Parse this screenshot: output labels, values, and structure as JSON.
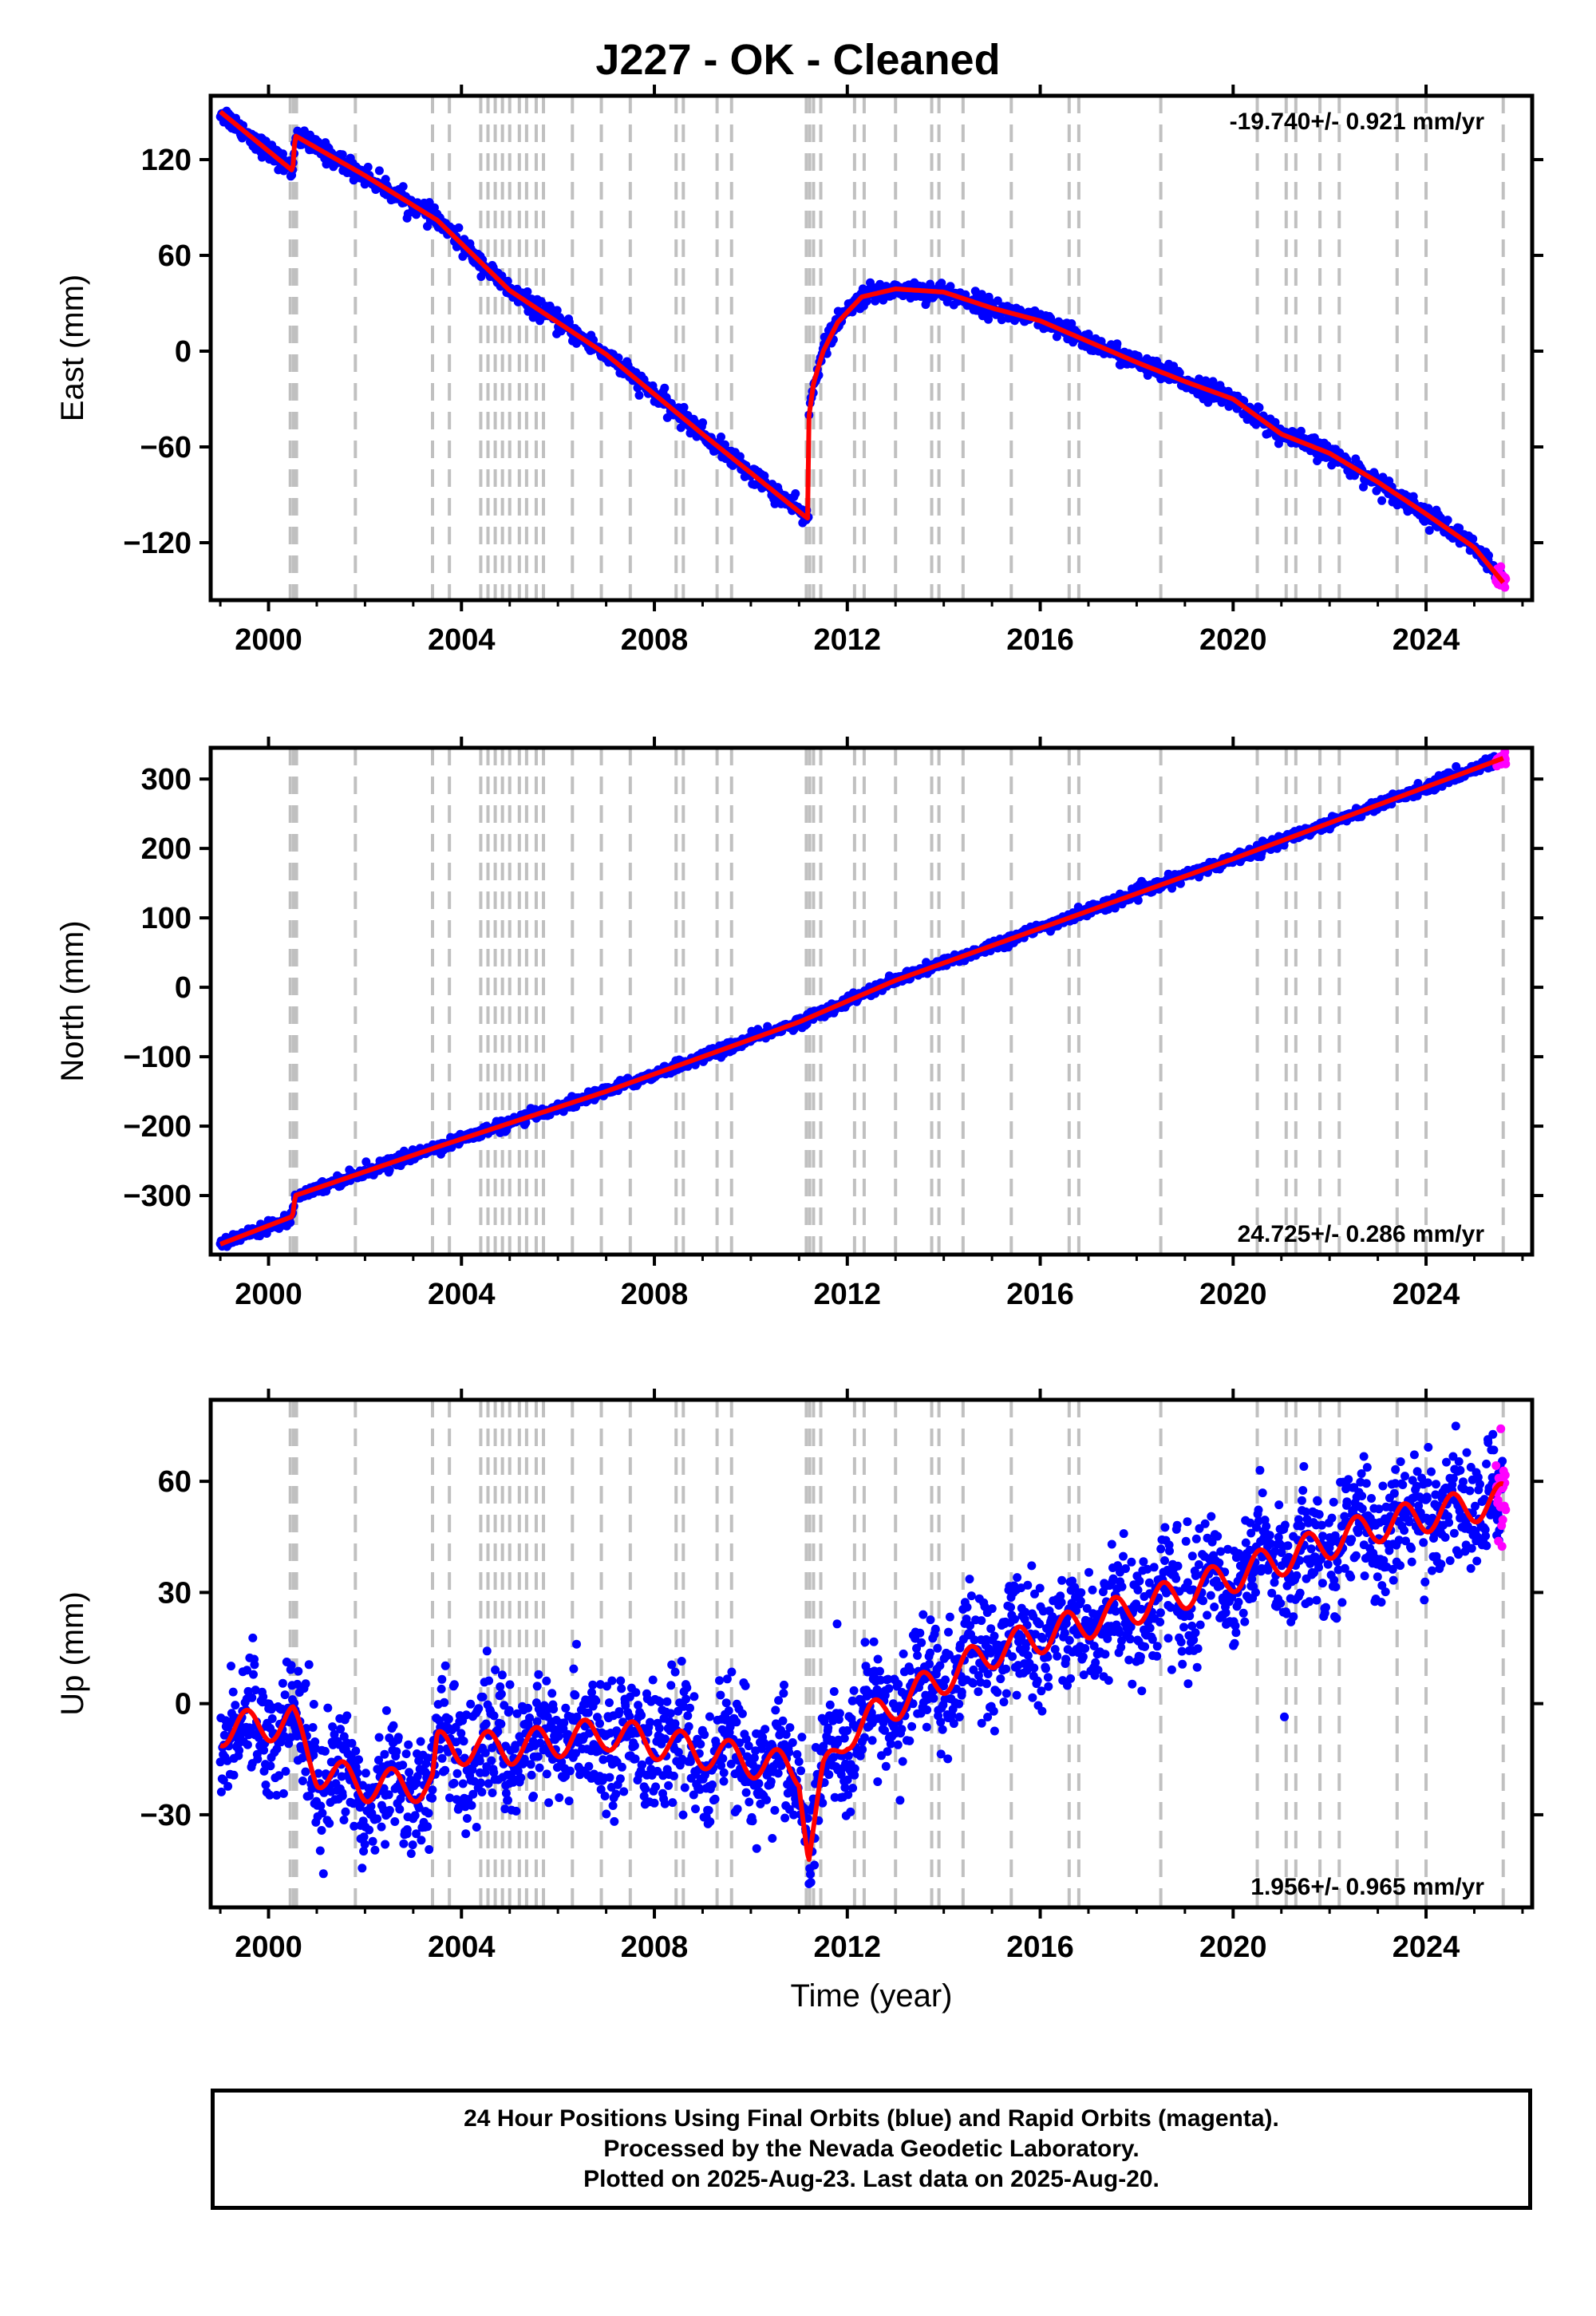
{
  "figure": {
    "title": "J227  - OK - Cleaned",
    "footer": [
      "24 Hour Positions Using Final Orbits (blue) and Rapid Orbits (magenta).",
      "Processed by the Nevada Geodetic Laboratory.",
      "Plotted on 2025-Aug-23. Last data on 2025-Aug-20."
    ],
    "colors": {
      "final_orbits": "#0000ff",
      "rapid_orbits": "#ff00ff",
      "model": "#ff0000",
      "steps": "#c0c0c0",
      "axis": "#000000"
    }
  },
  "chart_data": [
    {
      "type": "scatter",
      "ylabel": "East (mm)",
      "xlabel": "",
      "rate_label": "-19.740+/- 0.921 mm/yr",
      "xlim": [
        1998.8,
        2026.2
      ],
      "ylim": [
        -156,
        160
      ],
      "yticks": [
        120,
        60,
        0,
        -60,
        -120
      ],
      "ytick_labels": [
        "120",
        "60",
        "0",
        "−60",
        "−120"
      ],
      "xticks": [
        2000,
        2004,
        2008,
        2012,
        2016,
        2020,
        2024
      ],
      "xtick_labels": [
        "2000",
        "2004",
        "2008",
        "2012",
        "2016",
        "2020",
        "2024"
      ],
      "series": [
        {
          "name": "",
          "role": "model",
          "x": [
            1999.0,
            2000.5,
            2000.55,
            2002.0,
            2003.5,
            2005.0,
            2007.0,
            2009.0,
            2011.1,
            2011.2,
            2011.2,
            2011.3,
            2011.5,
            2011.8,
            2012.3,
            2013.0,
            2014.0,
            2015.0,
            2016.0,
            2017.0,
            2018.0,
            2019.0,
            2020.0,
            2021.0,
            2022.0,
            2023.0,
            2024.0,
            2025.0,
            2025.6
          ],
          "y": [
            150,
            113,
            135,
            110,
            82,
            38,
            -2,
            -52,
            -103,
            -105,
            -42,
            -20,
            0,
            18,
            34,
            39,
            37,
            27,
            19,
            6,
            -7,
            -19,
            -30,
            -52,
            -64,
            -82,
            -102,
            -123,
            -145
          ]
        },
        {
          "name": "",
          "role": "final_orbits_scatter",
          "noise_mm": 3,
          "n": 1600
        },
        {
          "name": "",
          "role": "rapid_orbits_scatter",
          "x_start": 2025.45,
          "x_end": 2025.65,
          "noise_mm": 3,
          "n": 25
        }
      ]
    },
    {
      "type": "scatter",
      "ylabel": "North (mm)",
      "xlabel": "",
      "rate_label": "24.725+/- 0.286 mm/yr",
      "xlim": [
        1998.8,
        2026.2
      ],
      "ylim": [
        -385,
        345
      ],
      "yticks": [
        300,
        200,
        100,
        0,
        -100,
        -200,
        -300
      ],
      "ytick_labels": [
        "300",
        "200",
        "100",
        "0",
        "−100",
        "−200",
        "−300"
      ],
      "xticks": [
        2000,
        2004,
        2008,
        2012,
        2016,
        2020,
        2024
      ],
      "xtick_labels": [
        "2000",
        "2004",
        "2008",
        "2012",
        "2016",
        "2020",
        "2024"
      ],
      "series": [
        {
          "name": "",
          "role": "model",
          "x": [
            1999.0,
            2000.5,
            2000.55,
            2003.5,
            2007.0,
            2011.0,
            2013.0,
            2016.0,
            2020.0,
            2025.6
          ],
          "y": [
            -370,
            -330,
            -300,
            -230,
            -150,
            -50,
            10,
            85,
            185,
            330
          ]
        },
        {
          "name": "",
          "role": "final_orbits_scatter",
          "noise_mm": 4,
          "n": 1600
        },
        {
          "name": "",
          "role": "rapid_orbits_scatter",
          "x_start": 2025.45,
          "x_end": 2025.65,
          "noise_mm": 4,
          "n": 25
        }
      ]
    },
    {
      "type": "scatter",
      "ylabel": "Up (mm)",
      "xlabel": "Time (year)",
      "rate_label": "1.956+/- 0.965 mm/yr",
      "xlim": [
        1998.8,
        2026.2
      ],
      "ylim": [
        -55,
        82
      ],
      "yticks": [
        60,
        30,
        0,
        -30
      ],
      "ytick_labels": [
        "60",
        "30",
        "0",
        "−30"
      ],
      "xticks": [
        2000,
        2004,
        2008,
        2012,
        2016,
        2020,
        2024
      ],
      "xtick_labels": [
        "2000",
        "2004",
        "2008",
        "2012",
        "2016",
        "2020",
        "2024"
      ],
      "series": [
        {
          "name": "",
          "role": "model",
          "x": [
            1999.0,
            2000.5,
            2001.0,
            2002.0,
            2003.4,
            2003.5,
            2005.0,
            2007.0,
            2009.0,
            2011.0,
            2011.2,
            2011.5,
            2012.0,
            2013.0,
            2015.0,
            2017.0,
            2019.0,
            2021.0,
            2023.0,
            2025.6
          ],
          "y": [
            -7,
            -5,
            -18,
            -22,
            -22,
            -12,
            -12,
            -8,
            -13,
            -18,
            -40,
            -20,
            -8,
            0,
            14,
            22,
            30,
            39,
            48,
            55
          ],
          "annual_amplitude_mm": 4.5
        },
        {
          "name": "",
          "role": "final_orbits_scatter",
          "noise_mm": 8,
          "n": 2400
        },
        {
          "name": "",
          "role": "rapid_orbits_scatter",
          "x_start": 2025.45,
          "x_end": 2025.65,
          "noise_mm": 7,
          "n": 25
        }
      ]
    }
  ],
  "step_epochs": [
    2000.45,
    2000.52,
    2000.58,
    2001.8,
    2003.4,
    2003.75,
    2004.4,
    2004.55,
    2004.7,
    2004.85,
    2005.0,
    2005.2,
    2005.35,
    2005.55,
    2005.7,
    2006.3,
    2006.9,
    2007.5,
    2008.45,
    2008.6,
    2009.3,
    2009.6,
    2011.15,
    2011.22,
    2011.3,
    2011.45,
    2012.15,
    2012.35,
    2013.0,
    2013.75,
    2013.9,
    2014.4,
    2015.4,
    2016.6,
    2016.8,
    2018.5,
    2020.5,
    2021.1,
    2021.3,
    2021.8,
    2022.2,
    2023.4,
    2024.0,
    2025.6
  ]
}
